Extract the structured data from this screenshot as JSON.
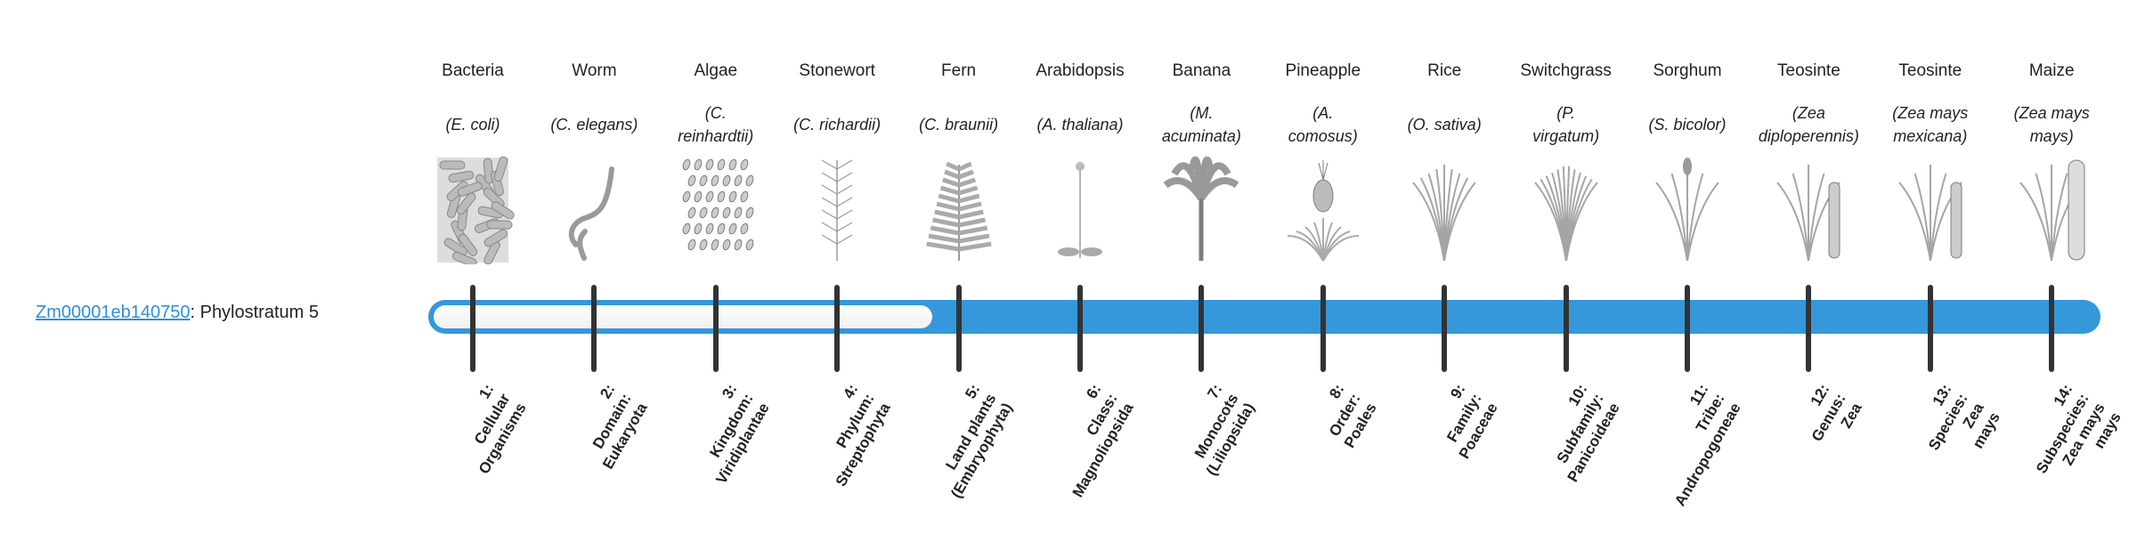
{
  "gene": {
    "id": "Zm00001eb140750",
    "suffix": ": Phylostratum 5",
    "phylostratum": 5
  },
  "colors": {
    "bar": "#3498db",
    "tick": "#333333",
    "link": "#2f8fdc"
  },
  "columns": [
    {
      "common": "Bacteria",
      "scientific": [
        "(E. coli)"
      ],
      "icon": "bacteria-icon",
      "rank": [
        "1:",
        "Cellular",
        "Organisms"
      ]
    },
    {
      "common": "Worm",
      "scientific": [
        "(C. elegans)"
      ],
      "icon": "worm-icon",
      "rank": [
        "2:",
        "Domain:",
        "Eukaryota"
      ]
    },
    {
      "common": "Algae",
      "scientific": [
        "(C.",
        "reinhardtii)"
      ],
      "icon": "algae-icon",
      "rank": [
        "3:",
        "Kingdom:",
        "Viridiplantae"
      ]
    },
    {
      "common": "Stonewort",
      "scientific": [
        "(C. richardii)"
      ],
      "icon": "stonewort-icon",
      "rank": [
        "4:",
        "Phylum:",
        "Streptophyta"
      ]
    },
    {
      "common": "Fern",
      "scientific": [
        "(C. braunii)"
      ],
      "icon": "fern-icon",
      "rank": [
        "5:",
        "Land plants",
        "(Embryophyta)"
      ]
    },
    {
      "common": "Arabidopsis",
      "scientific": [
        "(A. thaliana)"
      ],
      "icon": "arabidopsis-icon",
      "rank": [
        "6:",
        "Class:",
        "Magnoliopsida"
      ]
    },
    {
      "common": "Banana",
      "scientific": [
        "(M.",
        "acuminata)"
      ],
      "icon": "banana-icon",
      "rank": [
        "7:",
        "Monocots",
        "(Liliopsida)"
      ]
    },
    {
      "common": "Pineapple",
      "scientific": [
        "(A.",
        "comosus)"
      ],
      "icon": "pineapple-icon",
      "rank": [
        "8:",
        "Order:",
        "Poales"
      ]
    },
    {
      "common": "Rice",
      "scientific": [
        "(O. sativa)"
      ],
      "icon": "rice-icon",
      "rank": [
        "9:",
        "Family:",
        "Poaceae"
      ]
    },
    {
      "common": "Switchgrass",
      "scientific": [
        "(P.",
        "virgatum)"
      ],
      "icon": "switchgrass-icon",
      "rank": [
        "10:",
        "Subfamily:",
        "Panicoideae"
      ]
    },
    {
      "common": "Sorghum",
      "scientific": [
        "(S. bicolor)"
      ],
      "icon": "sorghum-icon",
      "rank": [
        "11:",
        "Tribe:",
        "Andropogoneae"
      ]
    },
    {
      "common": "Teosinte",
      "scientific": [
        "(Zea",
        "diploperennis)"
      ],
      "icon": "teosinte-icon",
      "rank": [
        "12:",
        "Genus:",
        "Zea"
      ]
    },
    {
      "common": "Teosinte",
      "scientific": [
        "(Zea mays",
        "mexicana)"
      ],
      "icon": "teosinte-icon",
      "rank": [
        "13:",
        "Species:",
        "Zea",
        "mays"
      ]
    },
    {
      "common": "Maize",
      "scientific": [
        "(Zea mays",
        "mays)"
      ],
      "icon": "maize-icon",
      "rank": [
        "14:",
        "Subspecies:",
        "Zea mays",
        "mays"
      ]
    }
  ]
}
